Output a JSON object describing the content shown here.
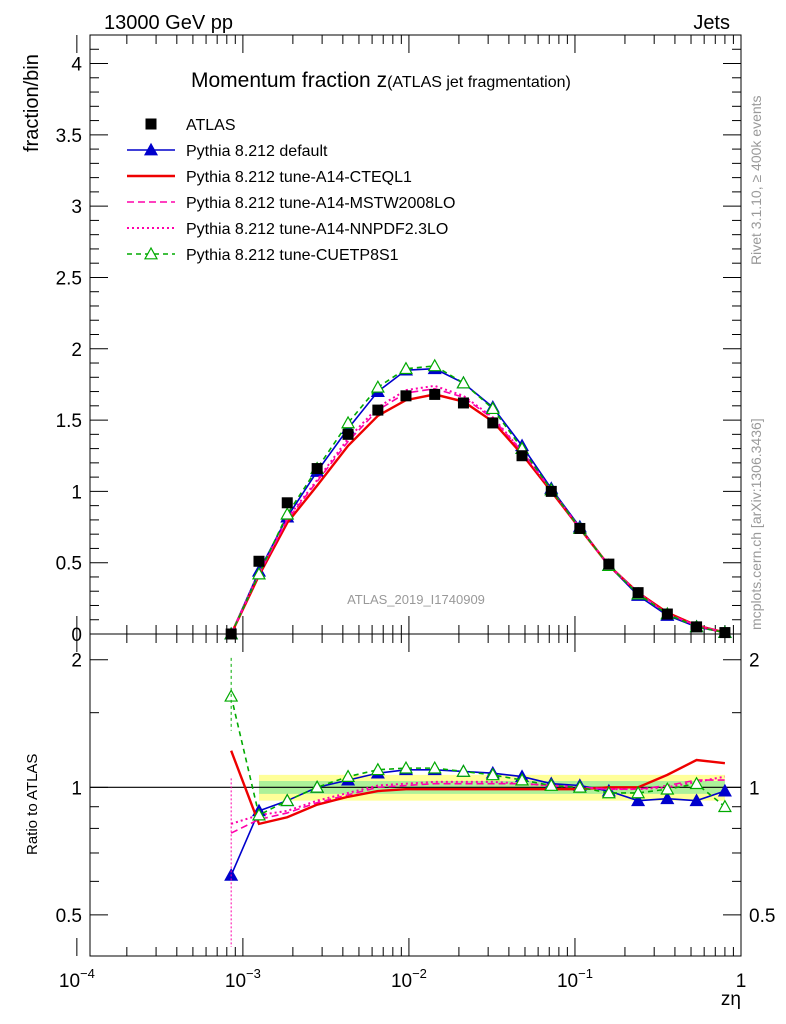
{
  "header": {
    "left": "13000 GeV pp",
    "right": "Jets",
    "side_rivet": "Rivet 3.1.10, ≥ 400k events",
    "side_mcplots": "mcplots.cern.ch [arXiv:1306.3436]"
  },
  "chart_data": {
    "type": "line",
    "title_main": "Momentum fraction z",
    "title_sub": "(ATLAS jet fragmentation)",
    "analysis_label": "ATLAS_2019_I1740909",
    "xlabel": "zη",
    "ylabel_top": "fraction/bin",
    "ylabel_bottom": "Ratio to ATLAS",
    "x_scale": "log",
    "xlim": [
      0.00012,
      1.0
    ],
    "ylim_top": [
      0,
      4.2
    ],
    "ylim_bottom": [
      0.4,
      2.3
    ],
    "x_ticks": [
      {
        "value": 0.0001,
        "base": "10",
        "exp": "−4"
      },
      {
        "value": 0.001,
        "base": "10",
        "exp": "−3"
      },
      {
        "value": 0.01,
        "base": "10",
        "exp": "−2"
      },
      {
        "value": 0.1,
        "base": "10",
        "exp": "−1"
      },
      {
        "value": 1,
        "base": "1",
        "exp": ""
      }
    ],
    "y_ticks_top": [
      {
        "value": 0,
        "label": "0"
      },
      {
        "value": 0.5,
        "label": "0.5"
      },
      {
        "value": 1,
        "label": "1"
      },
      {
        "value": 1.5,
        "label": "1.5"
      },
      {
        "value": 2,
        "label": "2"
      },
      {
        "value": 2.5,
        "label": "2.5"
      },
      {
        "value": 3,
        "label": "3"
      },
      {
        "value": 3.5,
        "label": "3.5"
      },
      {
        "value": 4,
        "label": "4"
      }
    ],
    "y_ticks_bottom": [
      {
        "value": 0.5,
        "label": "0.5"
      },
      {
        "value": 1,
        "label": "1"
      },
      {
        "value": 2,
        "label": "2"
      }
    ],
    "x": [
      0.00085,
      0.00125,
      0.00185,
      0.0028,
      0.0043,
      0.0065,
      0.0096,
      0.0143,
      0.0213,
      0.032,
      0.048,
      0.072,
      0.107,
      0.16,
      0.24,
      0.36,
      0.54,
      0.8
    ],
    "data_series": {
      "name": "ATLAS",
      "color": "#000000",
      "values": [
        0.0,
        0.51,
        0.92,
        1.16,
        1.4,
        1.57,
        1.67,
        1.68,
        1.62,
        1.48,
        1.25,
        1.0,
        0.74,
        0.49,
        0.29,
        0.14,
        0.05,
        0.01
      ]
    },
    "series": [
      {
        "name": "Pythia 8.212 default",
        "color": "#0000cc",
        "dash": "",
        "marker": "triangle-filled",
        "values": [
          0.0,
          0.44,
          0.82,
          1.14,
          1.44,
          1.7,
          1.85,
          1.86,
          1.76,
          1.59,
          1.32,
          1.02,
          0.75,
          0.48,
          0.27,
          0.13,
          0.05,
          0.01
        ],
        "ratio": [
          0.62,
          0.88,
          0.93,
          1.0,
          1.04,
          1.08,
          1.1,
          1.1,
          1.09,
          1.08,
          1.06,
          1.02,
          1.01,
          0.98,
          0.93,
          0.94,
          0.93,
          0.98
        ]
      },
      {
        "name": "Pythia 8.212 tune-A14-CTEQL1",
        "color": "#ee0000",
        "dash": "",
        "marker": "none",
        "values": [
          0.0,
          0.41,
          0.78,
          1.04,
          1.32,
          1.53,
          1.64,
          1.68,
          1.63,
          1.49,
          1.26,
          1.0,
          0.74,
          0.48,
          0.29,
          0.15,
          0.06,
          0.01
        ],
        "ratio": [
          1.22,
          0.82,
          0.85,
          0.91,
          0.95,
          0.98,
          0.99,
          0.99,
          0.99,
          0.99,
          0.99,
          0.99,
          0.99,
          1.0,
          1.0,
          1.07,
          1.16,
          1.14
        ]
      },
      {
        "name": "Pythia 8.212 tune-A14-MSTW2008LO",
        "color": "#ff00aa",
        "dash": "7,4",
        "marker": "none",
        "values": [
          0.0,
          0.42,
          0.8,
          1.07,
          1.35,
          1.57,
          1.69,
          1.72,
          1.66,
          1.51,
          1.28,
          1.01,
          0.74,
          0.48,
          0.29,
          0.14,
          0.06,
          0.01
        ],
        "ratio": [
          0.78,
          0.84,
          0.87,
          0.92,
          0.96,
          1.0,
          1.01,
          1.02,
          1.02,
          1.02,
          1.02,
          1.01,
          1.0,
          0.99,
          0.99,
          1.01,
          1.04,
          1.04
        ]
      },
      {
        "name": "Pythia 8.212 tune-A14-NNPDF2.3LO",
        "color": "#ff00aa",
        "dash": "2,3",
        "marker": "none",
        "values": [
          0.0,
          0.43,
          0.81,
          1.08,
          1.37,
          1.59,
          1.71,
          1.74,
          1.67,
          1.52,
          1.28,
          1.01,
          0.74,
          0.48,
          0.29,
          0.14,
          0.06,
          0.01
        ],
        "ratio": [
          0.82,
          0.86,
          0.88,
          0.93,
          0.97,
          1.01,
          1.02,
          1.03,
          1.03,
          1.03,
          1.02,
          1.01,
          1.0,
          0.99,
          0.99,
          1.0,
          1.03,
          1.06
        ]
      },
      {
        "name": "Pythia 8.212 tune-CUETP8S1",
        "color": "#00aa00",
        "dash": "5,4",
        "marker": "triangle-open",
        "values": [
          0.0,
          0.42,
          0.84,
          1.16,
          1.48,
          1.73,
          1.86,
          1.88,
          1.76,
          1.58,
          1.3,
          1.01,
          0.74,
          0.48,
          0.28,
          0.14,
          0.05,
          0.01
        ],
        "ratio": [
          1.64,
          0.86,
          0.93,
          1.0,
          1.06,
          1.1,
          1.11,
          1.11,
          1.09,
          1.07,
          1.04,
          1.01,
          1.0,
          0.97,
          0.97,
          0.99,
          1.02,
          0.9
        ]
      }
    ]
  }
}
